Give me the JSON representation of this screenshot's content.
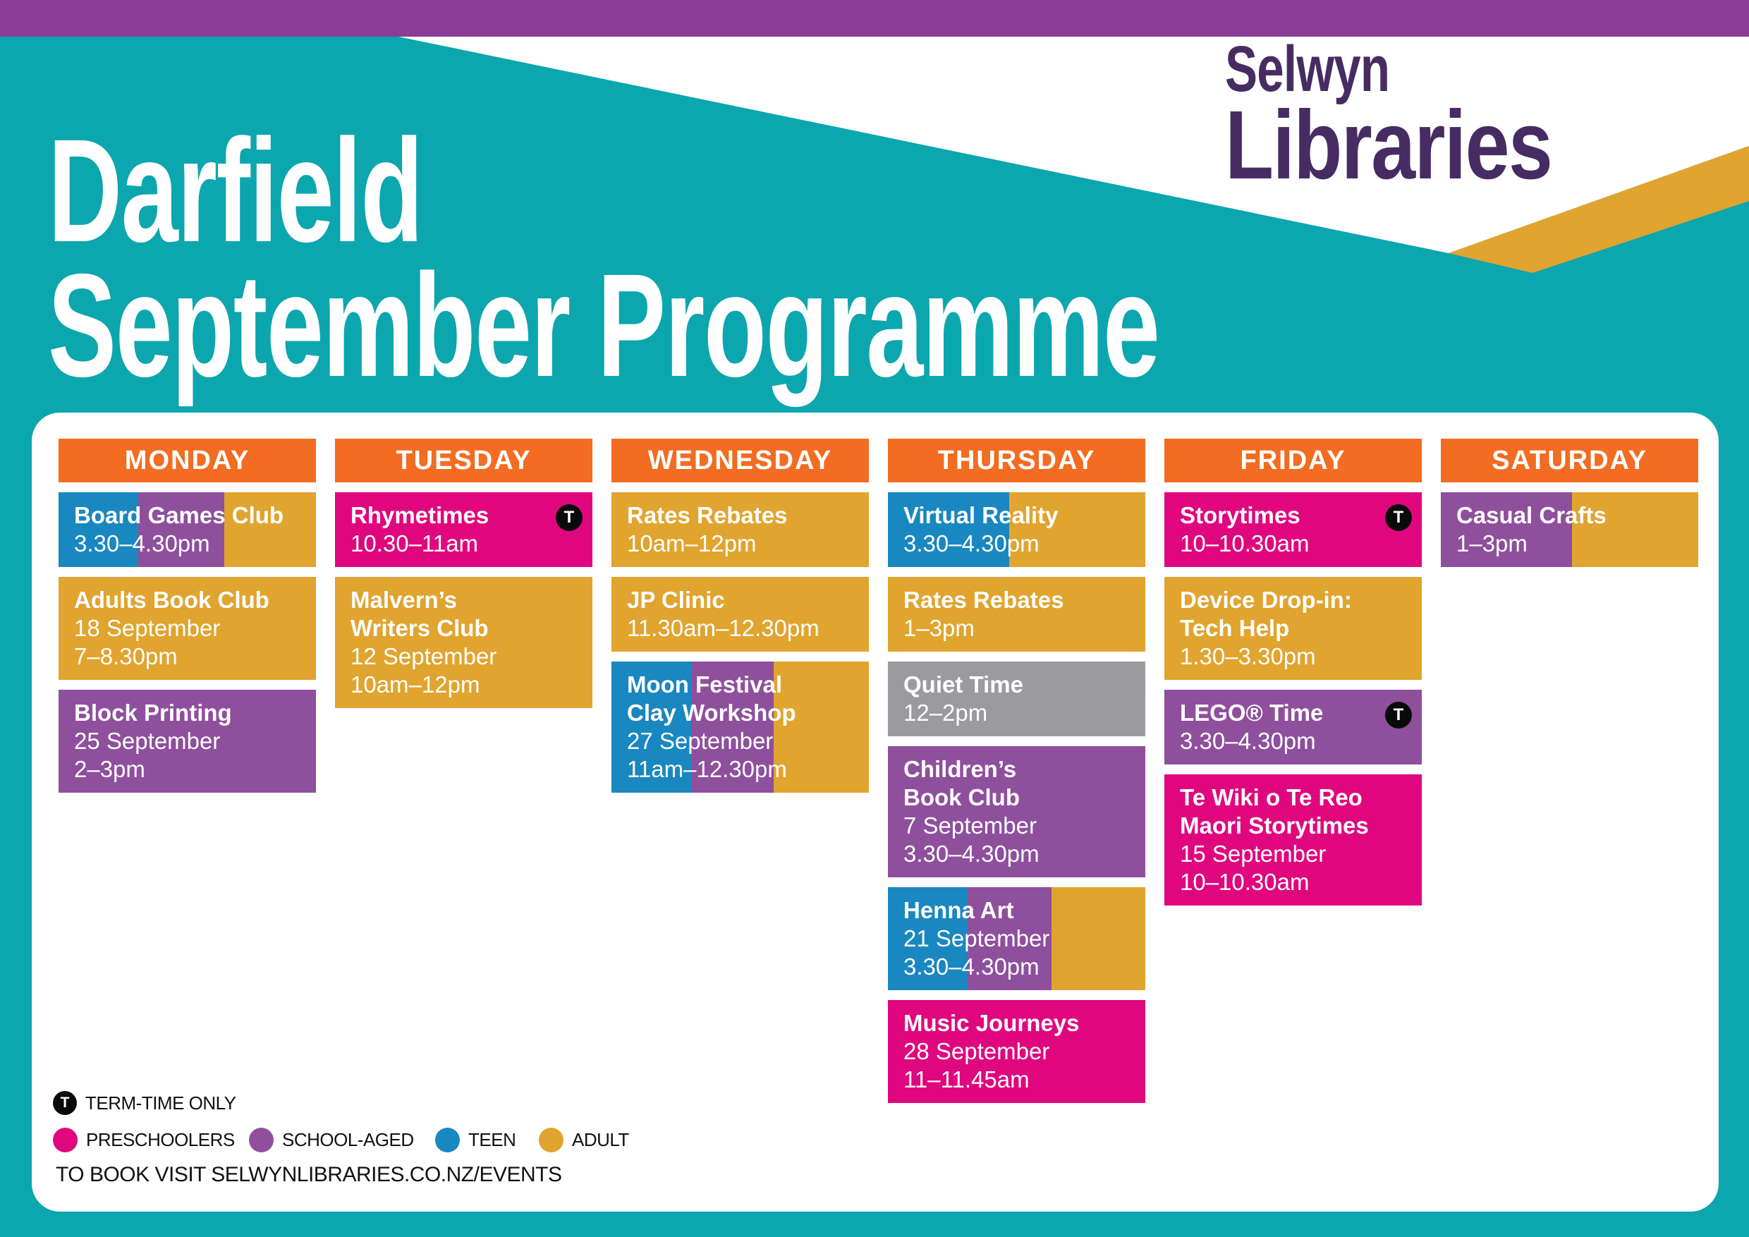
{
  "page": {
    "background_color": "#0CA6AE",
    "topbar_color": "#8B3D96",
    "header_stripe_color": "#E0A42F"
  },
  "title": {
    "line1": "Darfield",
    "line2": "September Programme"
  },
  "brand": {
    "line1": "Selwyn",
    "line2": "Libraries",
    "color": "#472C63"
  },
  "palette": {
    "day_header": "#F26C21",
    "preschoolers": "#E0077E",
    "school_aged": "#8E4F9D",
    "teen": "#1987C0",
    "adult": "#E0A42F",
    "neutral": "#9B9A9E",
    "badge_black": "#0A0A0A"
  },
  "columns": [
    {
      "day": "MONDAY",
      "events": [
        {
          "title": [
            "Board Games Club"
          ],
          "details": [
            "3.30–4.30pm"
          ],
          "badge": null,
          "segments": [
            [
              "teen",
              31
            ],
            [
              "school_aged",
              33.5
            ],
            [
              "adult",
              35.5
            ]
          ]
        },
        {
          "title": [
            "Adults Book Club"
          ],
          "details": [
            "18 September",
            "7–8.30pm"
          ],
          "badge": null,
          "segments": [
            [
              "adult",
              100
            ]
          ]
        },
        {
          "title": [
            "Block Printing"
          ],
          "details": [
            "25 September",
            "2–3pm"
          ],
          "badge": null,
          "segments": [
            [
              "school_aged",
              100
            ]
          ]
        }
      ]
    },
    {
      "day": "TUESDAY",
      "events": [
        {
          "title": [
            "Rhymetimes"
          ],
          "details": [
            "10.30–11am"
          ],
          "badge": "T",
          "segments": [
            [
              "preschoolers",
              100
            ]
          ]
        },
        {
          "title": [
            "Malvern’s",
            "Writers Club"
          ],
          "details": [
            "12 September",
            "10am–12pm"
          ],
          "badge": null,
          "segments": [
            [
              "adult",
              100
            ]
          ]
        }
      ]
    },
    {
      "day": "WEDNESDAY",
      "events": [
        {
          "title": [
            "Rates Rebates"
          ],
          "details": [
            "10am–12pm"
          ],
          "badge": null,
          "segments": [
            [
              "adult",
              100
            ]
          ]
        },
        {
          "title": [
            "JP Clinic"
          ],
          "details": [
            "11.30am–12.30pm"
          ],
          "badge": null,
          "segments": [
            [
              "adult",
              100
            ]
          ]
        },
        {
          "title": [
            "Moon Festival",
            "Clay Workshop"
          ],
          "details": [
            "27 September",
            "11am–12.30pm"
          ],
          "badge": null,
          "segments": [
            [
              "teen",
              31
            ],
            [
              "school_aged",
              32
            ],
            [
              "adult",
              37
            ]
          ]
        }
      ]
    },
    {
      "day": "THURSDAY",
      "events": [
        {
          "title": [
            "Virtual Reality"
          ],
          "details": [
            "3.30–4.30pm"
          ],
          "badge": null,
          "segments": [
            [
              "teen",
              47
            ],
            [
              "adult",
              53
            ]
          ]
        },
        {
          "title": [
            "Rates Rebates"
          ],
          "details": [
            "1–3pm"
          ],
          "badge": null,
          "segments": [
            [
              "adult",
              100
            ]
          ]
        },
        {
          "title": [
            "Quiet Time"
          ],
          "details": [
            "12–2pm"
          ],
          "badge": null,
          "segments": [
            [
              "neutral",
              100
            ]
          ]
        },
        {
          "title": [
            "Children’s",
            "Book Club"
          ],
          "details": [
            "7 September",
            "3.30–4.30pm"
          ],
          "badge": null,
          "segments": [
            [
              "school_aged",
              100
            ]
          ]
        },
        {
          "title": [
            "Henna Art"
          ],
          "details": [
            "21 September",
            "3.30–4.30pm"
          ],
          "badge": null,
          "segments": [
            [
              "teen",
              31
            ],
            [
              "school_aged",
              32.5
            ],
            [
              "adult",
              36.5
            ]
          ]
        },
        {
          "title": [
            "Music Journeys"
          ],
          "details": [
            "28 September",
            "11–11.45am"
          ],
          "badge": null,
          "segments": [
            [
              "preschoolers",
              100
            ]
          ]
        }
      ]
    },
    {
      "day": "FRIDAY",
      "events": [
        {
          "title": [
            "Storytimes"
          ],
          "details": [
            "10–10.30am"
          ],
          "badge": "T",
          "segments": [
            [
              "preschoolers",
              100
            ]
          ]
        },
        {
          "title": [
            "Device Drop-in:",
            "Tech Help"
          ],
          "details": [
            "1.30–3.30pm"
          ],
          "badge": null,
          "segments": [
            [
              "adult",
              100
            ]
          ]
        },
        {
          "title": [
            "LEGO® Time"
          ],
          "details": [
            "3.30–4.30pm"
          ],
          "badge": "T",
          "segments": [
            [
              "school_aged",
              100
            ]
          ]
        },
        {
          "title": [
            "Te Wiki o Te Reo",
            "Maori Storytimes"
          ],
          "details": [
            "15 September",
            "10–10.30am"
          ],
          "badge": null,
          "segments": [
            [
              "preschoolers",
              100
            ]
          ]
        }
      ]
    },
    {
      "day": "SATURDAY",
      "events": [
        {
          "title": [
            "Casual Crafts"
          ],
          "details": [
            "1–3pm"
          ],
          "badge": null,
          "segments": [
            [
              "school_aged",
              51
            ],
            [
              "adult",
              49
            ]
          ]
        }
      ]
    }
  ],
  "legend": {
    "term_badge": "T",
    "term_label": "TERM-TIME ONLY",
    "categories": [
      {
        "key": "preschoolers",
        "label": "PRESCHOOLERS"
      },
      {
        "key": "school_aged",
        "label": "SCHOOL-AGED"
      },
      {
        "key": "teen",
        "label": "TEEN"
      },
      {
        "key": "adult",
        "label": "ADULT"
      }
    ]
  },
  "footer": {
    "text": "TO BOOK VISIT SELWYNLIBRARIES.CO.NZ/EVENTS"
  }
}
